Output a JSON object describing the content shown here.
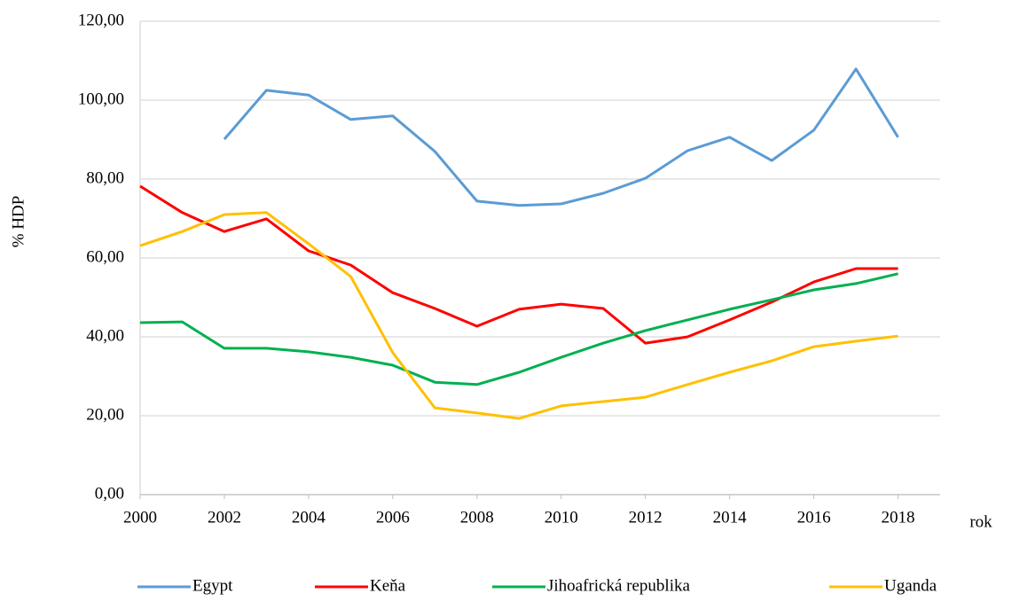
{
  "chart_data": {
    "type": "line",
    "x": [
      2000,
      2001,
      2002,
      2003,
      2004,
      2005,
      2006,
      2007,
      2008,
      2009,
      2010,
      2011,
      2012,
      2013,
      2014,
      2015,
      2016,
      2017,
      2018
    ],
    "xlim": [
      2000,
      2019
    ],
    "xticks": [
      2000,
      2002,
      2004,
      2006,
      2008,
      2010,
      2012,
      2014,
      2016,
      2018
    ],
    "ylim": [
      0,
      120
    ],
    "yticks": [
      {
        "value": 0,
        "label": "0,00"
      },
      {
        "value": 20,
        "label": "20,00"
      },
      {
        "value": 40,
        "label": "40,00"
      },
      {
        "value": 60,
        "label": "60,00"
      },
      {
        "value": 80,
        "label": "80,00"
      },
      {
        "value": 100,
        "label": "100,00"
      },
      {
        "value": 120,
        "label": "120,00"
      }
    ],
    "ylabel": "% HDP",
    "xlabel": "rok",
    "grid": true,
    "legend": "bottom",
    "series": [
      {
        "name": "Egypt",
        "color": "#5b9bd5",
        "values": [
          null,
          null,
          90.1,
          102.5,
          101.3,
          95.1,
          96.0,
          87.0,
          74.4,
          73.3,
          73.7,
          76.4,
          80.2,
          87.2,
          90.6,
          84.7,
          92.4,
          107.9,
          90.6
        ]
      },
      {
        "name": "Keňa",
        "color": "#ff0000",
        "values": [
          78.2,
          71.5,
          66.7,
          69.9,
          61.8,
          58.2,
          51.2,
          47.2,
          42.7,
          47.0,
          48.3,
          47.2,
          38.4,
          40.0,
          44.3,
          48.8,
          53.9,
          57.3,
          57.3
        ]
      },
      {
        "name": "Jihoafrická republika",
        "color": "#00b050",
        "values": [
          43.6,
          43.8,
          37.1,
          37.1,
          36.2,
          34.8,
          32.8,
          28.5,
          27.9,
          31.0,
          34.8,
          38.4,
          41.6,
          44.3,
          47.0,
          49.4,
          51.9,
          53.5,
          56.0
        ]
      },
      {
        "name": "Uganda",
        "color": "#ffc000",
        "values": [
          63.1,
          66.7,
          71.0,
          71.5,
          63.6,
          55.3,
          36.0,
          22.0,
          20.7,
          19.3,
          22.5,
          23.6,
          24.7,
          27.9,
          31.0,
          33.9,
          37.5,
          38.9,
          40.2
        ]
      }
    ]
  }
}
